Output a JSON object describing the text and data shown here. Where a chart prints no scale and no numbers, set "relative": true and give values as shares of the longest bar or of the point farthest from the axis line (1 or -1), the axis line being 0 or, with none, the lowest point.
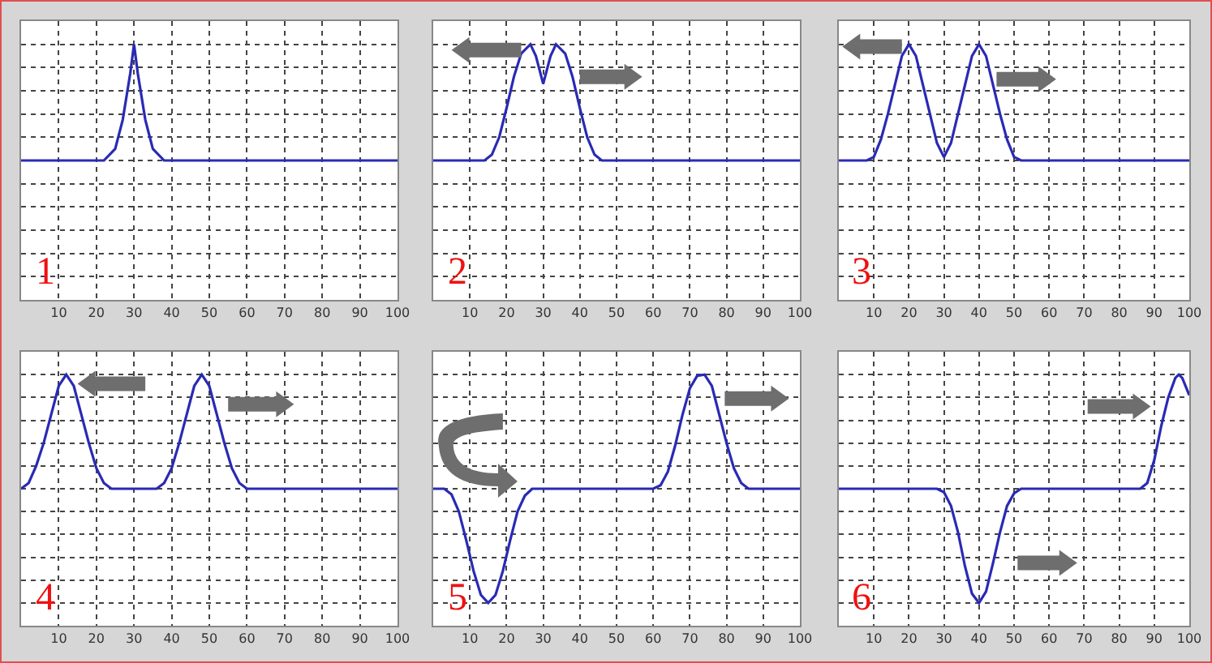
{
  "chart_data": [
    {
      "type": "line",
      "relative": true,
      "x": [
        0,
        22,
        25,
        27,
        29,
        30,
        31,
        33,
        35,
        38,
        100
      ],
      "series": [
        {
          "color": "#2a2ab4",
          "values": [
            0,
            0,
            0.1,
            0.35,
            0.75,
            1,
            0.75,
            0.35,
            0.1,
            0,
            0
          ]
        }
      ],
      "xlim": [
        0,
        100
      ],
      "xticks": [
        10,
        20,
        30,
        40,
        50,
        60,
        70,
        80,
        90,
        100
      ],
      "grid": true,
      "tick_labels": "x",
      "annotations": [
        "1"
      ]
    },
    {
      "type": "line",
      "relative": true,
      "x": [
        0,
        14,
        16,
        18,
        20,
        22,
        24,
        26.5,
        28,
        30,
        32,
        33.5,
        36,
        38,
        40,
        42,
        44,
        46,
        100
      ],
      "series": [
        {
          "color": "#2a2ab4",
          "values": [
            0,
            0,
            0.05,
            0.2,
            0.45,
            0.72,
            0.92,
            1,
            0.9,
            0.66,
            0.9,
            1,
            0.92,
            0.72,
            0.45,
            0.2,
            0.05,
            0,
            0
          ]
        }
      ],
      "xlim": [
        0,
        100
      ],
      "xticks": [
        10,
        20,
        30,
        40,
        50,
        60,
        70,
        80,
        90,
        100
      ],
      "grid": true,
      "tick_labels": "x",
      "annotations": [
        "2"
      ]
    },
    {
      "type": "line",
      "relative": true,
      "x": [
        0,
        8,
        10,
        12,
        14,
        16,
        18,
        20,
        22,
        24,
        26,
        28,
        30,
        32,
        34,
        36,
        38,
        40,
        42,
        44,
        46,
        48,
        50,
        52,
        100
      ],
      "series": [
        {
          "color": "#2a2ab4",
          "values": [
            0,
            0,
            0.03,
            0.18,
            0.4,
            0.65,
            0.9,
            1,
            0.9,
            0.65,
            0.4,
            0.15,
            0.03,
            0.15,
            0.4,
            0.65,
            0.9,
            1,
            0.9,
            0.65,
            0.4,
            0.18,
            0.03,
            0,
            0
          ]
        }
      ],
      "xlim": [
        0,
        100
      ],
      "xticks": [
        10,
        20,
        30,
        40,
        50,
        60,
        70,
        80,
        90,
        100
      ],
      "grid": true,
      "tick_labels": "x",
      "annotations": [
        "3"
      ]
    },
    {
      "type": "line",
      "relative": true,
      "x": [
        0,
        2,
        4,
        6,
        8,
        10,
        12,
        14,
        16,
        18,
        20,
        22,
        24,
        36,
        38,
        40,
        42,
        44,
        46,
        48,
        50,
        52,
        54,
        56,
        58,
        60,
        100
      ],
      "series": [
        {
          "color": "#2a2ab4",
          "values": [
            0,
            0.05,
            0.2,
            0.4,
            0.65,
            0.9,
            1,
            0.9,
            0.65,
            0.4,
            0.18,
            0.05,
            0,
            0,
            0.05,
            0.18,
            0.4,
            0.65,
            0.9,
            1,
            0.9,
            0.65,
            0.4,
            0.18,
            0.05,
            0,
            0
          ]
        }
      ],
      "xlim": [
        0,
        100
      ],
      "xticks": [
        10,
        20,
        30,
        40,
        50,
        60,
        70,
        80,
        90,
        100
      ],
      "grid": true,
      "tick_labels": "x",
      "annotations": [
        "4"
      ]
    },
    {
      "type": "line",
      "relative": true,
      "x": [
        0,
        3,
        5,
        7,
        9,
        11,
        13,
        15,
        17,
        19,
        21,
        23,
        25,
        27,
        60,
        62,
        64,
        66,
        68,
        70,
        72,
        74,
        76,
        78,
        80,
        82,
        84,
        86,
        100
      ],
      "series": [
        {
          "color": "#2a2ab4",
          "values": [
            0,
            0,
            -0.05,
            -0.2,
            -0.45,
            -0.72,
            -0.93,
            -1,
            -0.93,
            -0.72,
            -0.45,
            -0.2,
            -0.06,
            0,
            0,
            0.03,
            0.15,
            0.38,
            0.65,
            0.88,
            0.99,
            1,
            0.9,
            0.65,
            0.4,
            0.18,
            0.05,
            0,
            0
          ]
        }
      ],
      "xlim": [
        0,
        100
      ],
      "xticks": [
        10,
        20,
        30,
        40,
        50,
        60,
        70,
        80,
        90,
        100
      ],
      "grid": true,
      "tick_labels": "x",
      "annotations": [
        "5"
      ]
    },
    {
      "type": "line",
      "relative": true,
      "x": [
        0,
        28,
        30,
        32,
        34,
        36,
        38,
        40,
        42,
        44,
        46,
        48,
        50,
        52,
        86,
        88,
        90,
        92,
        94,
        96,
        97,
        98,
        100
      ],
      "series": [
        {
          "color": "#2a2ab4",
          "values": [
            0,
            0,
            -0.03,
            -0.15,
            -0.38,
            -0.68,
            -0.92,
            -1,
            -0.9,
            -0.65,
            -0.38,
            -0.15,
            -0.04,
            0,
            0,
            0.05,
            0.25,
            0.55,
            0.8,
            0.97,
            1,
            0.97,
            0.82
          ]
        }
      ],
      "xlim": [
        0,
        100
      ],
      "xticks": [
        10,
        20,
        30,
        40,
        50,
        60,
        70,
        80,
        90,
        100
      ],
      "grid": true,
      "tick_labels": "x",
      "annotations": [
        "6"
      ]
    }
  ]
}
